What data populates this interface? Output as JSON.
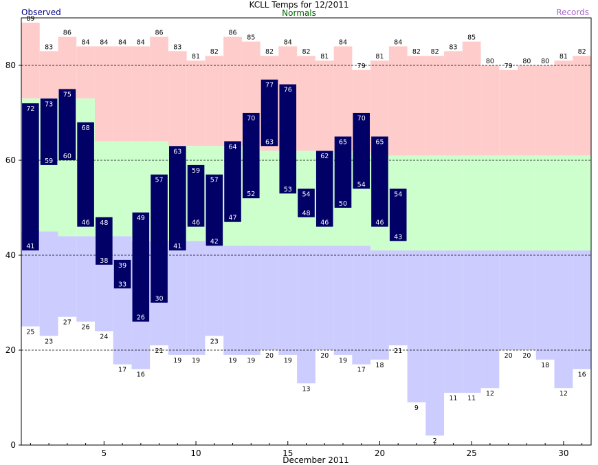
{
  "chart_data": {
    "type": "bar",
    "title": "KCLL Temps for 12/2011",
    "xlabel": "December 2011",
    "ylabel": "",
    "legend": {
      "observed": "Observed",
      "normals": "Normals",
      "records": "Records"
    },
    "colors": {
      "observed": "#000066",
      "normals_band": "#ccffcc",
      "record_high_band": "#ffcccc",
      "record_low_band": "#ccccff",
      "observed_label": "#000080",
      "normals_label": "#006600",
      "records_label": "#aa66cc"
    },
    "ylim": [
      0,
      90
    ],
    "xlim": [
      0.5,
      31.5
    ],
    "yticks": [
      0,
      20,
      40,
      60,
      80
    ],
    "xticks": [
      5,
      10,
      15,
      20,
      25,
      30
    ],
    "grid": "dashed horizontal at 20, 40, 60, 80",
    "days": [
      1,
      2,
      3,
      4,
      5,
      6,
      7,
      8,
      9,
      10,
      11,
      12,
      13,
      14,
      15,
      16,
      17,
      18,
      19,
      20,
      21,
      22,
      23,
      24,
      25,
      26,
      27,
      28,
      29,
      30,
      31
    ],
    "observed_high": [
      72,
      73,
      75,
      68,
      48,
      39,
      49,
      57,
      63,
      59,
      57,
      64,
      70,
      77,
      76,
      54,
      62,
      65,
      70,
      65,
      54,
      null,
      null,
      null,
      null,
      null,
      null,
      null,
      null,
      null,
      null
    ],
    "observed_low": [
      41,
      59,
      60,
      46,
      38,
      33,
      26,
      30,
      41,
      46,
      42,
      47,
      52,
      63,
      53,
      48,
      46,
      50,
      54,
      46,
      43,
      null,
      null,
      null,
      null,
      null,
      null,
      null,
      null,
      null,
      null
    ],
    "record_high": [
      89,
      83,
      86,
      84,
      84,
      84,
      84,
      86,
      83,
      81,
      82,
      86,
      85,
      82,
      84,
      82,
      81,
      84,
      79,
      81,
      84,
      82,
      82,
      83,
      85,
      80,
      79,
      80,
      80,
      81,
      82
    ],
    "record_low": [
      25,
      23,
      27,
      26,
      24,
      17,
      16,
      21,
      19,
      19,
      23,
      19,
      19,
      20,
      19,
      13,
      20,
      19,
      17,
      18,
      21,
      9,
      2,
      11,
      11,
      12,
      20,
      20,
      18,
      12,
      16
    ],
    "normal_high": [
      73,
      73,
      73,
      73,
      64,
      64,
      64,
      64,
      63,
      63,
      63,
      63,
      63,
      62,
      62,
      62,
      62,
      62,
      62,
      61,
      61,
      61,
      61,
      61,
      61,
      61,
      61,
      61,
      61,
      61,
      61
    ],
    "normal_low": [
      45,
      45,
      44,
      44,
      44,
      44,
      43,
      43,
      43,
      43,
      42,
      42,
      42,
      42,
      42,
      42,
      42,
      42,
      42,
      41,
      41,
      41,
      41,
      41,
      41,
      41,
      41,
      41,
      41,
      41,
      41
    ],
    "high_label_texts": [
      "72",
      "73",
      "75",
      "68",
      "48",
      "39",
      "49",
      "57",
      "63",
      "59",
      "57",
      "64",
      "70",
      "77",
      "76",
      "54",
      "62",
      "65",
      "70",
      "65",
      "54"
    ],
    "low_label_texts": [
      "41",
      "59",
      "60",
      "46",
      "38",
      "33",
      "26",
      "30",
      "41",
      "46",
      "42",
      "47",
      "52",
      "63",
      "53",
      "48",
      "46",
      "50",
      "54",
      "46",
      "43"
    ],
    "record_high_label_texts": [
      "89",
      "83",
      "86",
      "84",
      "84",
      "84",
      "84",
      "86",
      "83",
      "81",
      "82",
      "86",
      "85",
      "82",
      "84",
      "82",
      "81",
      "84",
      "79",
      "81",
      "84",
      "82",
      "82",
      "83",
      "85",
      "80",
      "79",
      "80",
      "80",
      "81",
      "82"
    ],
    "record_low_label_texts": [
      "25",
      "23",
      "27",
      "26",
      "24",
      "17",
      "16",
      "21",
      "19",
      "19",
      "23",
      "19",
      "19",
      "20",
      "19",
      "13",
      "20",
      "19",
      "17",
      "18",
      "21",
      "9",
      "2",
      "11",
      "11",
      "12",
      "20",
      "20",
      "18",
      "12",
      "16"
    ]
  }
}
